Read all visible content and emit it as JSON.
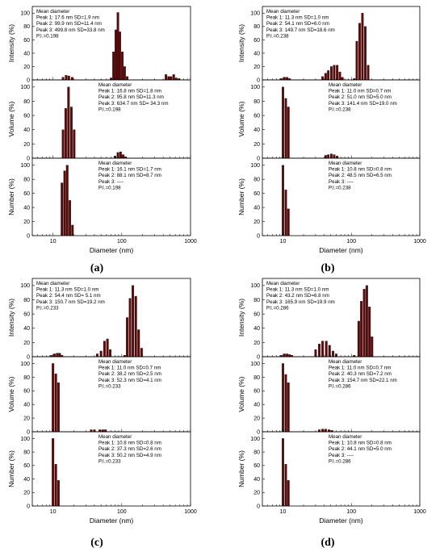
{
  "chart_data": [
    {
      "type": "bar",
      "panel_label": "(a)",
      "xlabel": "Diameter (nm)",
      "x_scale": "log",
      "xlim": [
        5,
        1000
      ],
      "x_ticks": [
        "10",
        "100",
        "1000"
      ],
      "subplots": [
        {
          "ylabel": "Intensity (%)",
          "ylim": [
            0,
            110
          ],
          "y_ticks": [
            "0",
            "20",
            "40",
            "60",
            "80",
            "100"
          ],
          "annotation": [
            "Mean diameter",
            "Peak 1: 17.6 nm SD=1.9 nm",
            "Peak 2: 99.9 nm SD=11.4 nm",
            "Peak 3: 499.8 nm SD=33.8 nm",
            "P.I.=0.198"
          ],
          "bars": [
            [
              14,
              4
            ],
            [
              15.5,
              7
            ],
            [
              17,
              6
            ],
            [
              19,
              4
            ],
            [
              70,
              3
            ],
            [
              76,
              42
            ],
            [
              82,
              75
            ],
            [
              88,
              101
            ],
            [
              94,
              72
            ],
            [
              102,
              42
            ],
            [
              110,
              20
            ],
            [
              120,
              5
            ],
            [
              440,
              8
            ],
            [
              480,
              5
            ],
            [
              520,
              5
            ],
            [
              570,
              8
            ],
            [
              620,
              3
            ],
            [
              680,
              2
            ]
          ]
        },
        {
          "ylabel": "Volume (%)",
          "ylim": [
            0,
            110
          ],
          "y_ticks": [
            "0",
            "20",
            "40",
            "60",
            "80",
            "100"
          ],
          "annotation": [
            "Mean diameter",
            "Peak 1: 16.8 nm SD=1.8 nm",
            "Peak 2: 95.8 nm SD=11.3 nm",
            "Peak 3: 634.7 nm SD= 34.3 nm",
            "P.I.=0.198"
          ],
          "bars": [
            [
              14,
              40
            ],
            [
              15.3,
              70
            ],
            [
              16.8,
              100
            ],
            [
              18.5,
              72
            ],
            [
              20.3,
              40
            ],
            [
              80,
              3
            ],
            [
              88,
              8
            ],
            [
              96,
              9
            ],
            [
              105,
              5
            ],
            [
              114,
              2
            ]
          ]
        },
        {
          "ylabel": "Number (%)",
          "ylim": [
            0,
            110
          ],
          "y_ticks": [
            "0",
            "20",
            "40",
            "60",
            "80",
            "100"
          ],
          "annotation": [
            "Mean diameter",
            "Peak 1: 16.1 nm SD=1.7 nm",
            "Peak 2: 88.1 nm SD=8.7 nm",
            "Peak 3: ----",
            "P.I.=0.198"
          ],
          "bars": [
            [
              13.5,
              75
            ],
            [
              14.8,
              92
            ],
            [
              16.1,
              100
            ],
            [
              17.6,
              50
            ],
            [
              19.2,
              15
            ]
          ]
        }
      ]
    },
    {
      "type": "bar",
      "panel_label": "(b)",
      "xlabel": "Diameter (nm)",
      "x_scale": "log",
      "xlim": [
        5,
        1000
      ],
      "x_ticks": [
        "10",
        "100",
        "1000"
      ],
      "subplots": [
        {
          "ylabel": "Intensity (%)",
          "ylim": [
            0,
            110
          ],
          "y_ticks": [
            "0",
            "20",
            "40",
            "60",
            "80",
            "100"
          ],
          "annotation": [
            "Mean diameter",
            "Peak 1: 11.3 nm SD=1.0 nm",
            "Peak 2: 54.1 nm SD=6.0 nm",
            "Peak 3: 149.7 nm SD=18.6 nm",
            "P.I.=0.238"
          ],
          "bars": [
            [
              9.5,
              2
            ],
            [
              10.5,
              4
            ],
            [
              11.5,
              4
            ],
            [
              12.5,
              2
            ],
            [
              38,
              5
            ],
            [
              42,
              10
            ],
            [
              46,
              14
            ],
            [
              51,
              20
            ],
            [
              56,
              22
            ],
            [
              62,
              22
            ],
            [
              68,
              12
            ],
            [
              74,
              4
            ],
            [
              110,
              2
            ],
            [
              120,
              58
            ],
            [
              132,
              85
            ],
            [
              145,
              100
            ],
            [
              160,
              80
            ],
            [
              176,
              22
            ]
          ]
        },
        {
          "ylabel": "Volume (%)",
          "ylim": [
            0,
            110
          ],
          "y_ticks": [
            "0",
            "20",
            "40",
            "60",
            "80",
            "100"
          ],
          "annotation": [
            "Mean diameter",
            "Peak 1: 11.0 nm SD=0.7 nm",
            "Peak 2: 51.0 nm SD=5.0 nm",
            "Peak 3: 141.4 nm SD=19.0 nm",
            "P.I.=0.238"
          ],
          "bars": [
            [
              10,
              100
            ],
            [
              11,
              84
            ],
            [
              12,
              72
            ],
            [
              42,
              4
            ],
            [
              46,
              5
            ],
            [
              51,
              6
            ],
            [
              56,
              5
            ],
            [
              62,
              3
            ]
          ]
        },
        {
          "ylabel": "Number (%)",
          "ylim": [
            0,
            110
          ],
          "y_ticks": [
            "0",
            "20",
            "40",
            "60",
            "80",
            "100"
          ],
          "annotation": [
            "Mean diameter",
            "Peak 1: 10.8 nm SD=0.8 nm",
            "Peak 2: 48.5 nm SD=6.5 nm",
            "Peak 3: ----",
            "P.I.=0.238"
          ],
          "bars": [
            [
              10,
              100
            ],
            [
              11,
              65
            ],
            [
              12,
              38
            ]
          ]
        }
      ]
    },
    {
      "type": "bar",
      "panel_label": "(c)",
      "xlabel": "Diameter (nm)",
      "x_scale": "log",
      "xlim": [
        5,
        1000
      ],
      "x_ticks": [
        "10",
        "100",
        "1000"
      ],
      "subplots": [
        {
          "ylabel": "Intensity (%)",
          "ylim": [
            0,
            110
          ],
          "y_ticks": [
            "0",
            "20",
            "40",
            "60",
            "80",
            "100"
          ],
          "annotation": [
            "Mean diameter",
            "Peak 1: 11.3 nm SD=1.0 nm",
            "Peak 2: 54.4 nm SD= 5.1 nm",
            "Peak 3: 150.7 nm SD=19.2 nm",
            "P.I.=0.233"
          ],
          "bars": [
            [
              9.5,
              2
            ],
            [
              10.5,
              4
            ],
            [
              11.5,
              5
            ],
            [
              12.5,
              5
            ],
            [
              13.5,
              2
            ],
            [
              44,
              4
            ],
            [
              50,
              8
            ],
            [
              56,
              22
            ],
            [
              62,
              25
            ],
            [
              68,
              10
            ],
            [
              110,
              2
            ],
            [
              120,
              55
            ],
            [
              132,
              82
            ],
            [
              145,
              100
            ],
            [
              160,
              85
            ],
            [
              176,
              38
            ],
            [
              194,
              12
            ]
          ]
        },
        {
          "ylabel": "Volume (%)",
          "ylim": [
            0,
            110
          ],
          "y_ticks": [
            "0",
            "20",
            "40",
            "60",
            "80",
            "100"
          ],
          "annotation": [
            "Mean diameter",
            "Peak 1: 11.0 nm SD=0.7 nm",
            "Peak 2: 38.2 nm SD=2.5 nm",
            "Peak 3: 52.3 nm SD=4.1 nm",
            "P.I.=0.233"
          ],
          "bars": [
            [
              10,
              100
            ],
            [
              11,
              85
            ],
            [
              12,
              72
            ],
            [
              36,
              3
            ],
            [
              40,
              3
            ],
            [
              48,
              3
            ],
            [
              53,
              3
            ],
            [
              58,
              3
            ]
          ]
        },
        {
          "ylabel": "Number (%)",
          "ylim": [
            0,
            110
          ],
          "y_ticks": [
            "0",
            "20",
            "40",
            "60",
            "80",
            "100"
          ],
          "annotation": [
            "Mean diameter",
            "Peak 1: 10.8 nm SD=0.8 nm",
            "Peak 2: 37.3 nm SD=2.6 nm",
            "Peak 3: 50.2 nm SD=4.9 nm",
            "P.I.=0.233"
          ],
          "bars": [
            [
              10,
              100
            ],
            [
              11,
              62
            ],
            [
              12,
              38
            ]
          ]
        }
      ]
    },
    {
      "type": "bar",
      "panel_label": "(d)",
      "xlabel": "Diameter (nm)",
      "x_scale": "log",
      "xlim": [
        5,
        1000
      ],
      "x_ticks": [
        "10",
        "100",
        "1000"
      ],
      "subplots": [
        {
          "ylabel": "Intensity (%)",
          "ylim": [
            0,
            110
          ],
          "y_ticks": [
            "0",
            "20",
            "40",
            "60",
            "80",
            "100"
          ],
          "annotation": [
            "Mean diameter",
            "Peak 1: 11.3 nm SD=1.0 nm",
            "Peak 2: 43.2 nm SD=6.8 nm",
            "Peak 3: 165.9 nm SD=19.9 nm",
            "P.I.=0.286"
          ],
          "bars": [
            [
              9.5,
              2
            ],
            [
              10.5,
              4
            ],
            [
              11.5,
              4
            ],
            [
              12.5,
              3
            ],
            [
              13.5,
              2
            ],
            [
              30,
              10
            ],
            [
              34,
              18
            ],
            [
              38,
              22
            ],
            [
              43,
              22
            ],
            [
              48,
              16
            ],
            [
              54,
              8
            ],
            [
              60,
              4
            ],
            [
              110,
              2
            ],
            [
              128,
              50
            ],
            [
              140,
              78
            ],
            [
              154,
              95
            ],
            [
              168,
              100
            ],
            [
              184,
              70
            ],
            [
              200,
              28
            ]
          ]
        },
        {
          "ylabel": "Volume (%)",
          "ylim": [
            0,
            110
          ],
          "y_ticks": [
            "0",
            "20",
            "40",
            "60",
            "80",
            "100"
          ],
          "annotation": [
            "Mean diameter",
            "Peak 1: 11.0 nm SD=0.7 nm",
            "Peak 2: 40.3 nm SD=7.2 nm",
            "Peak 3: 154.7 nm SD=22.1 nm",
            "P.I.=0.286"
          ],
          "bars": [
            [
              10,
              100
            ],
            [
              11,
              84
            ],
            [
              12,
              72
            ],
            [
              34,
              3
            ],
            [
              38,
              4
            ],
            [
              42,
              4
            ],
            [
              47,
              3
            ],
            [
              52,
              2
            ]
          ]
        },
        {
          "ylabel": "Number (%)",
          "ylim": [
            0,
            110
          ],
          "y_ticks": [
            "0",
            "20",
            "40",
            "60",
            "80",
            "100"
          ],
          "annotation": [
            "Mean diameter",
            "Peak 1: 10.8 nm SD=0.8 nm",
            "Peak 2: 44.1 nm SD=5.0 nm",
            "Peak 3: ----",
            "P.I.=0.286"
          ],
          "bars": [
            [
              10,
              100
            ],
            [
              11,
              62
            ],
            [
              12,
              38
            ]
          ]
        }
      ]
    }
  ]
}
